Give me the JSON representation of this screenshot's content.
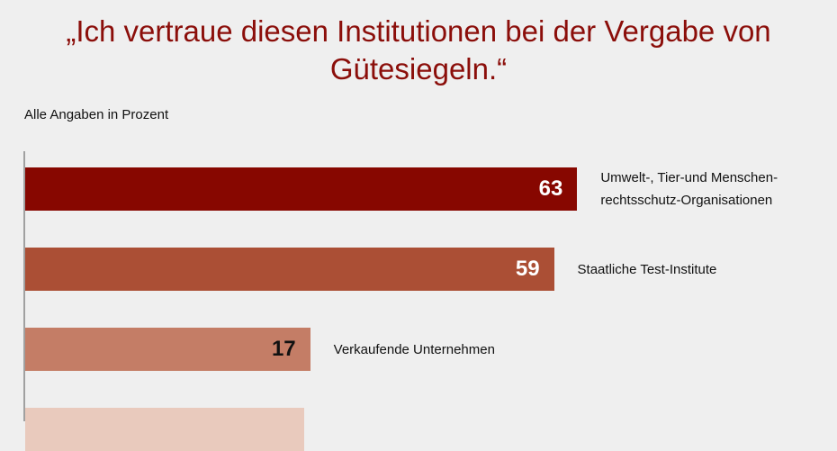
{
  "chart_data": {
    "type": "bar",
    "orientation": "horizontal",
    "title": "„Ich vertraue diesen Institutionen bei der Vergabe von Gütesiegeln.“",
    "subtitle": "Alle Angaben in Prozent",
    "categories": [
      "Umwelt-, Tier-und Menschen-\nrechtsschutz-Organisationen",
      "Staatliche Test-Institute",
      "Verkaufende Unternehmen",
      ""
    ],
    "values": [
      63,
      59,
      17,
      16
    ],
    "value_labels": [
      "63",
      "59",
      "17",
      ""
    ],
    "colors": [
      "#870700",
      "#ab4f35",
      "#c47d66",
      "#e9cabd"
    ],
    "value_label_colors": [
      "#ffffff",
      "#ffffff",
      "#111111",
      "#111111"
    ],
    "grid": false
  }
}
